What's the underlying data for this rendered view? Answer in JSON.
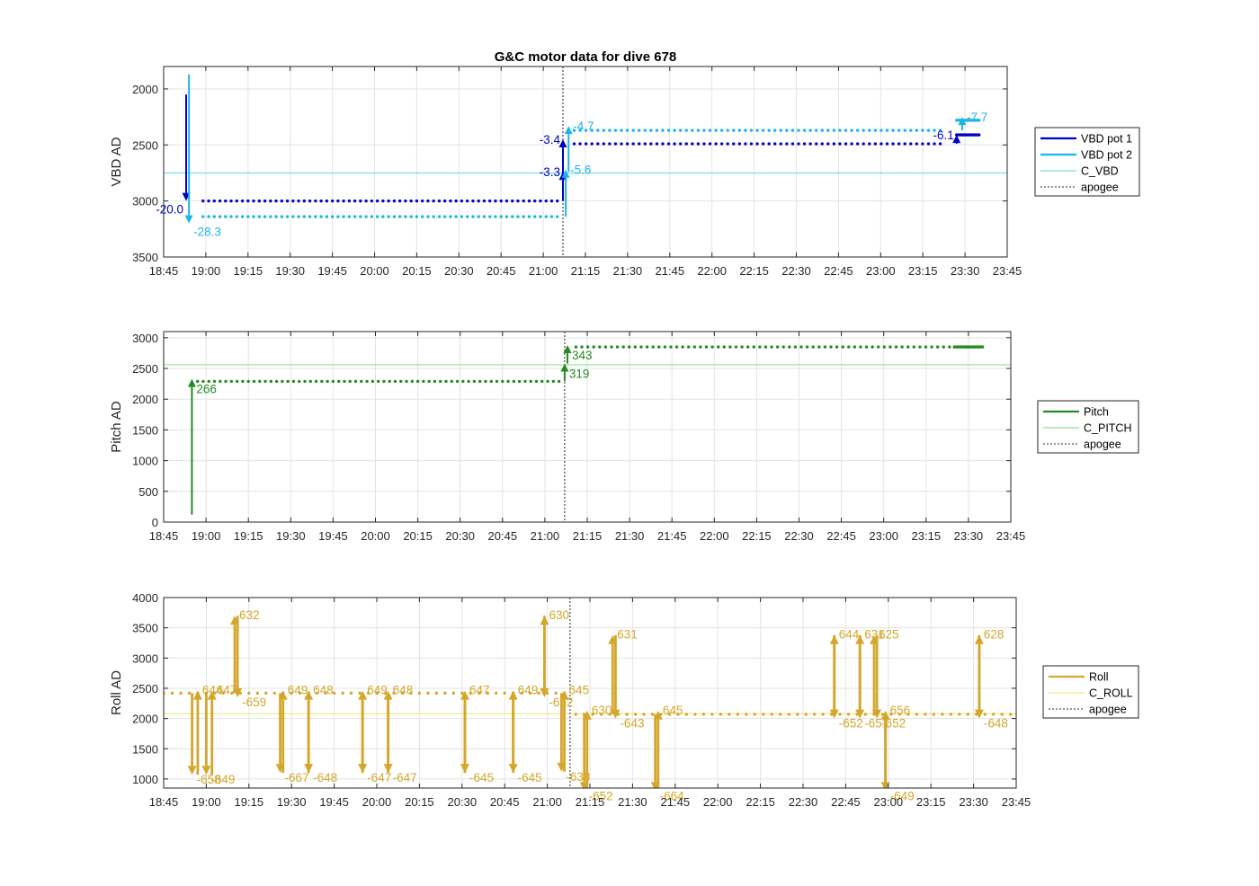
{
  "chart_data": [
    {
      "type": "line",
      "title": "G&C motor data for dive 678",
      "xlabel": "",
      "ylabel": "VBD AD",
      "x_ticks": [
        "18:45",
        "19:00",
        "19:15",
        "19:30",
        "19:45",
        "20:00",
        "20:15",
        "20:30",
        "20:45",
        "21:00",
        "21:15",
        "21:30",
        "21:45",
        "22:00",
        "22:15",
        "22:30",
        "22:45",
        "23:00",
        "23:15",
        "23:30",
        "23:45"
      ],
      "xlim": [
        "18:45",
        "23:45"
      ],
      "ylim": [
        1800,
        3500
      ],
      "y_reversed": true,
      "y_ticks": [
        "2000",
        "2500",
        "3000",
        "3500"
      ],
      "grid": true,
      "legend_position": "right",
      "apogee": "21:07",
      "colors": {
        "pot1": "#0000c8",
        "pot2": "#1eb4e6",
        "ref": "#7fd8e6"
      },
      "series": [
        {
          "name": "VBD pot 1",
          "color": "#0000c8",
          "dots": {
            "start": "18:59",
            "end": "21:06",
            "step_min": 2,
            "value": 3000
          },
          "dots2": {
            "start": "21:11",
            "end": "23:23",
            "step_min": 2.1,
            "value": 2490
          },
          "dots3": {
            "start": "23:27",
            "end": "23:35",
            "step_min": 0.5,
            "value": 2410
          },
          "moves": [
            {
              "t": "18:53",
              "from": 2050,
              "to": 3000,
              "label": "-20.0",
              "label_side": "left"
            },
            {
              "t": "21:07",
              "from": 3000,
              "to": 2740,
              "label": "-3.3",
              "label_side": "left"
            },
            {
              "t": "21:07",
              "from": 2760,
              "to": 2450,
              "label": "-3.4",
              "label_side": "left"
            },
            {
              "t": "23:27",
              "from": 2490,
              "to": 2410,
              "label": "-6.1",
              "label_side": "left"
            }
          ]
        },
        {
          "name": "VBD pot 2",
          "color": "#1eb4e6",
          "dots": {
            "start": "18:59",
            "end": "21:06",
            "step_min": 2,
            "value": 3140
          },
          "dots2": {
            "start": "21:11",
            "end": "23:23",
            "step_min": 2.1,
            "value": 2370
          },
          "dots3": {
            "start": "23:27",
            "end": "23:35",
            "step_min": 0.5,
            "value": 2280
          },
          "moves": [
            {
              "t": "18:54",
              "from": 1870,
              "to": 3200,
              "label": "-28.3",
              "label_side": "right"
            },
            {
              "t": "21:08",
              "from": 3140,
              "to": 2720,
              "label": "-5.6",
              "label_side": "right"
            },
            {
              "t": "21:09",
              "from": 2740,
              "to": 2330,
              "label": "-4.7",
              "label_side": "right"
            },
            {
              "t": "23:29",
              "from": 2370,
              "to": 2250,
              "label": "-7.7",
              "label_side": "right"
            }
          ]
        },
        {
          "name": "C_VBD",
          "color": "#7fd8e6",
          "constant": 2750
        },
        {
          "name": "apogee",
          "color": "#555555",
          "style": "dotted"
        }
      ]
    },
    {
      "type": "line",
      "title": "",
      "xlabel": "",
      "ylabel": "Pitch AD",
      "x_ticks": [
        "18:45",
        "19:00",
        "19:15",
        "19:30",
        "19:45",
        "20:00",
        "20:15",
        "20:30",
        "20:45",
        "21:00",
        "21:15",
        "21:30",
        "21:45",
        "22:00",
        "22:15",
        "22:30",
        "22:45",
        "23:00",
        "23:15",
        "23:30",
        "23:45"
      ],
      "xlim": [
        "18:45",
        "23:45"
      ],
      "ylim": [
        0,
        3100
      ],
      "y_ticks": [
        "0",
        "500",
        "1000",
        "1500",
        "2000",
        "2500",
        "3000"
      ],
      "grid": true,
      "legend_position": "right",
      "apogee": "21:07",
      "series": [
        {
          "name": "Pitch",
          "color": "#228b22",
          "dots": {
            "start": "18:57",
            "end": "21:05",
            "step_min": 2,
            "value": 2290
          },
          "dots2": {
            "start": "21:11",
            "end": "23:24",
            "step_min": 2.1,
            "value": 2850
          },
          "dots3": {
            "start": "23:25",
            "end": "23:35",
            "step_min": 0.5,
            "value": 2850
          },
          "moves": [
            {
              "t": "18:55",
              "from": 120,
              "to": 2330,
              "label": "266",
              "label_side": "right"
            },
            {
              "t": "21:07",
              "from": 2290,
              "to": 2580,
              "label": "319",
              "label_side": "right"
            },
            {
              "t": "21:08",
              "from": 2580,
              "to": 2880,
              "label": "343",
              "label_side": "right"
            }
          ]
        },
        {
          "name": "C_PITCH",
          "color": "#8fe08f",
          "constant": 2560
        },
        {
          "name": "apogee",
          "color": "#555555",
          "style": "dotted"
        }
      ]
    },
    {
      "type": "line",
      "title": "",
      "xlabel": "",
      "ylabel": "Roll AD",
      "x_ticks": [
        "18:45",
        "19:00",
        "19:15",
        "19:30",
        "19:45",
        "20:00",
        "20:15",
        "20:30",
        "20:45",
        "21:00",
        "21:15",
        "21:30",
        "21:45",
        "22:00",
        "22:15",
        "22:30",
        "22:45",
        "23:00",
        "23:15",
        "23:30",
        "23:45"
      ],
      "xlim": [
        "18:45",
        "23:45"
      ],
      "ylim": [
        850,
        4000
      ],
      "y_ticks": [
        "1000",
        "1500",
        "2000",
        "2500",
        "3000",
        "3500",
        "4000"
      ],
      "grid": true,
      "legend_position": "right",
      "apogee": "21:08",
      "series": [
        {
          "name": "Roll",
          "color": "#d4a72c",
          "dots": {
            "start": "18:45",
            "end": "21:06",
            "step_min": 3,
            "value": 2420
          },
          "dots2": {
            "start": "21:10",
            "end": "23:45",
            "step_min": 3,
            "value": 2070
          },
          "moves": [
            {
              "t": "18:55",
              "from": 2420,
              "to": 1070,
              "label": "-658",
              "label_side": "right"
            },
            {
              "t": "18:57",
              "from": 1070,
              "to": 2460,
              "label": "644",
              "label_side": "right"
            },
            {
              "t": "19:00",
              "from": 2420,
              "to": 1070,
              "label": "-649",
              "label_side": "right"
            },
            {
              "t": "19:02",
              "from": 1070,
              "to": 2460,
              "label": "647",
              "label_side": "right"
            },
            {
              "t": "19:10",
              "from": 2420,
              "to": 3700,
              "label": "632",
              "label_side": "right"
            },
            {
              "t": "19:11",
              "from": 3700,
              "to": 2350,
              "label": "-659",
              "label_side": "right"
            },
            {
              "t": "19:26",
              "from": 2420,
              "to": 1100,
              "label": "-667",
              "label_side": "right"
            },
            {
              "t": "19:27",
              "from": 1100,
              "to": 2460,
              "label": "649",
              "label_side": "right"
            },
            {
              "t": "19:36",
              "from": 2420,
              "to": 1100,
              "label": "-648",
              "label_side": "right"
            },
            {
              "t": "19:36",
              "from": 1100,
              "to": 2460,
              "label": "648",
              "label_side": "right"
            },
            {
              "t": "19:55",
              "from": 2420,
              "to": 1100,
              "label": "-647",
              "label_side": "right"
            },
            {
              "t": "19:55",
              "from": 1100,
              "to": 2460,
              "label": "649",
              "label_side": "right"
            },
            {
              "t": "20:04",
              "from": 2420,
              "to": 1100,
              "label": "-647",
              "label_side": "right"
            },
            {
              "t": "20:04",
              "from": 1100,
              "to": 2460,
              "label": "648",
              "label_side": "right"
            },
            {
              "t": "20:31",
              "from": 2420,
              "to": 1100,
              "label": "-645",
              "label_side": "right"
            },
            {
              "t": "20:31",
              "from": 1100,
              "to": 2460,
              "label": "647",
              "label_side": "right"
            },
            {
              "t": "20:48",
              "from": 2420,
              "to": 1100,
              "label": "-645",
              "label_side": "right"
            },
            {
              "t": "20:48",
              "from": 1100,
              "to": 2460,
              "label": "649",
              "label_side": "right"
            },
            {
              "t": "20:59",
              "from": 2420,
              "to": 3700,
              "label": "630",
              "label_side": "right"
            },
            {
              "t": "20:59",
              "from": 3700,
              "to": 2350,
              "label": "-662",
              "label_side": "right"
            },
            {
              "t": "21:05",
              "from": 2420,
              "to": 1120,
              "label": "-638",
              "label_side": "right"
            },
            {
              "t": "21:06",
              "from": 1120,
              "to": 2460,
              "label": "645",
              "label_side": "right"
            },
            {
              "t": "21:13",
              "from": 2070,
              "to": 800,
              "label": "-652",
              "label_side": "right"
            },
            {
              "t": "21:14",
              "from": 800,
              "to": 2130,
              "label": "630",
              "label_side": "right"
            },
            {
              "t": "21:23",
              "from": 2070,
              "to": 3380,
              "label": "631",
              "label_side": "right"
            },
            {
              "t": "21:24",
              "from": 3380,
              "to": 2000,
              "label": "-643",
              "label_side": "right"
            },
            {
              "t": "21:38",
              "from": 2070,
              "to": 800,
              "label": "-664",
              "label_side": "right"
            },
            {
              "t": "21:39",
              "from": 800,
              "to": 2130,
              "label": "645",
              "label_side": "right"
            },
            {
              "t": "22:41",
              "from": 2070,
              "to": 3380,
              "label": "644",
              "label_side": "right"
            },
            {
              "t": "22:41",
              "from": 3380,
              "to": 2000,
              "label": "-652",
              "label_side": "right"
            },
            {
              "t": "22:50",
              "from": 2070,
              "to": 3380,
              "label": "631",
              "label_side": "right"
            },
            {
              "t": "22:50",
              "from": 3380,
              "to": 2000,
              "label": "-651",
              "label_side": "right"
            },
            {
              "t": "22:55",
              "from": 2070,
              "to": 3380,
              "label": "625",
              "label_side": "right"
            },
            {
              "t": "22:56",
              "from": 3380,
              "to": 2000,
              "label": "-652",
              "label_side": "right"
            },
            {
              "t": "22:59",
              "from": 2070,
              "to": 800,
              "label": "-649",
              "label_side": "right"
            },
            {
              "t": "22:59",
              "from": 800,
              "to": 2130,
              "label": "656",
              "label_side": "right"
            },
            {
              "t": "23:32",
              "from": 2070,
              "to": 3380,
              "label": "628",
              "label_side": "right"
            },
            {
              "t": "23:32",
              "from": 3380,
              "to": 2000,
              "label": "-648",
              "label_side": "right"
            }
          ]
        },
        {
          "name": "C_ROLL",
          "color": "#f5e88a",
          "constant": 2080
        },
        {
          "name": "apogee",
          "color": "#555555",
          "style": "dotted"
        }
      ]
    }
  ]
}
